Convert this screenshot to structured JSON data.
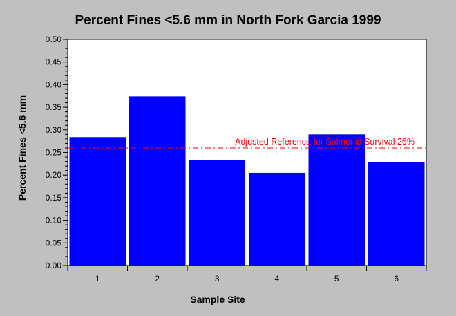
{
  "chart_data": {
    "type": "bar",
    "title": "Percent Fines <5.6 mm in North Fork Garcia 1999",
    "xlabel": "Sample Site",
    "ylabel": "Percent Fines <5.6 mm",
    "categories": [
      "1",
      "2",
      "3",
      "4",
      "5",
      "6"
    ],
    "values": [
      0.284,
      0.374,
      0.233,
      0.205,
      0.29,
      0.228
    ],
    "ylim": [
      0,
      0.5
    ],
    "yticks": [
      "0.00",
      "0.05",
      "0.10",
      "0.15",
      "0.20",
      "0.25",
      "0.30",
      "0.35",
      "0.40",
      "0.45",
      "0.50"
    ],
    "bar_color": "#0000ff",
    "grid": false,
    "reference_line": {
      "value": 0.26,
      "label": "Adjusted Reference for Salmonid Survival 26%",
      "color": "#ff0000"
    }
  }
}
